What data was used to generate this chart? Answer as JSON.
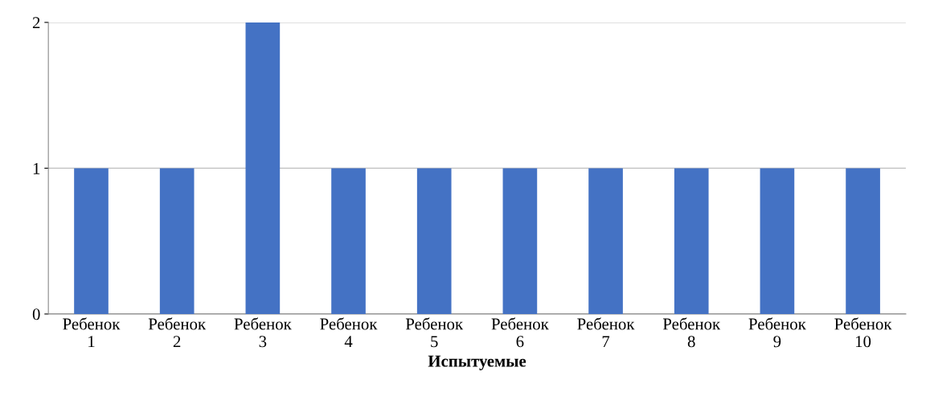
{
  "chart_data": {
    "type": "bar",
    "xlabel": "Испытуемые",
    "categories": [
      "Ребенок\n1",
      "Ребенок\n2",
      "Ребенок\n3",
      "Ребенок\n4",
      "Ребенок\n5",
      "Ребенок\n6",
      "Ребенок\n7",
      "Ребенок\n8",
      "Ребенок\n9",
      "Ребенок\n10"
    ],
    "values": [
      1,
      1,
      2,
      1,
      1,
      1,
      1,
      1,
      1,
      1
    ],
    "color": "#4472c4",
    "ylim": [
      0,
      2
    ],
    "yticks": [
      0,
      1,
      2
    ],
    "grid": "y",
    "legend": false
  }
}
